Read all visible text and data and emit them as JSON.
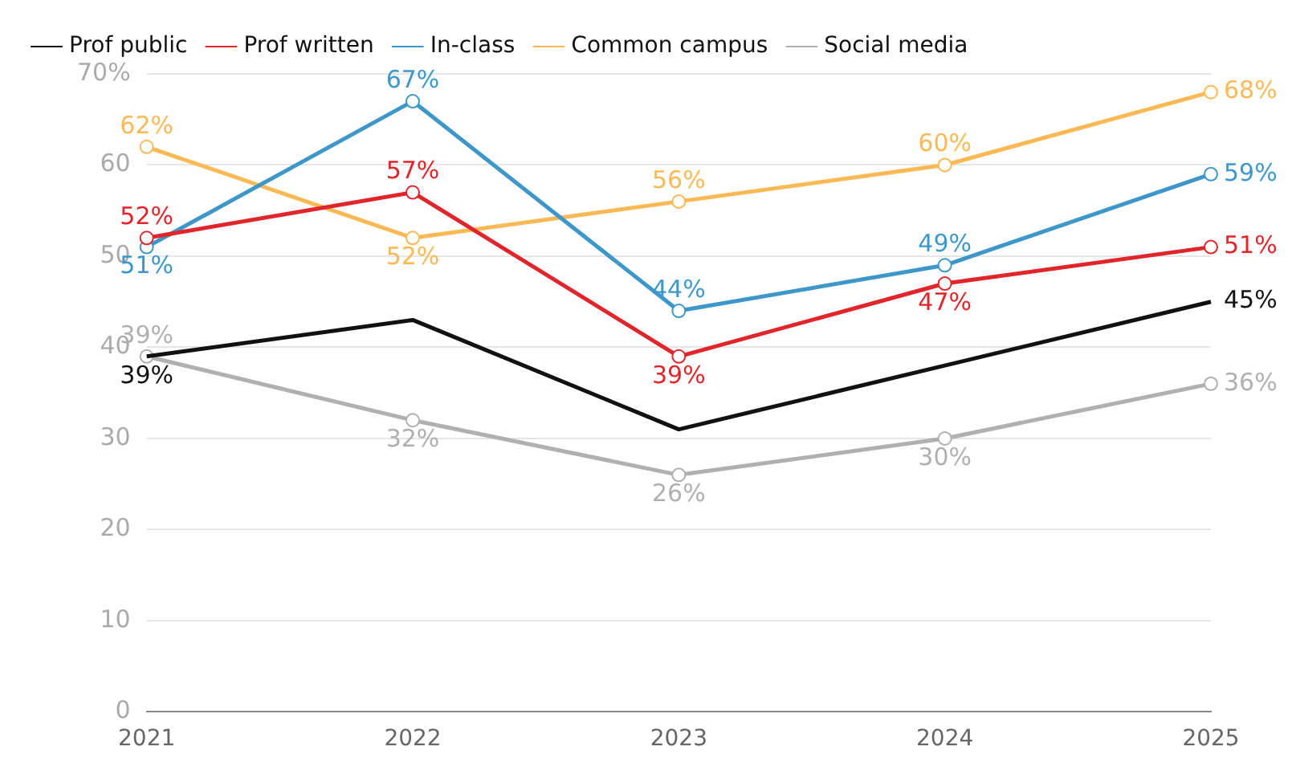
{
  "chart_data": {
    "type": "line",
    "categories": [
      "2021",
      "2022",
      "2023",
      "2024",
      "2025"
    ],
    "series": [
      {
        "name": "Prof public",
        "color": "#111111",
        "marker": "none",
        "values": [
          39,
          43,
          31,
          38,
          45
        ],
        "value_labels": [
          "39%",
          null,
          null,
          null,
          "45%"
        ]
      },
      {
        "name": "Prof written",
        "color": "#e0252b",
        "marker": "circle",
        "values": [
          52,
          57,
          39,
          47,
          51
        ],
        "value_labels": [
          "52%",
          "57%",
          "39%",
          "47%",
          "51%"
        ]
      },
      {
        "name": "In-class",
        "color": "#3d97c9",
        "marker": "circle",
        "values": [
          51,
          67,
          44,
          49,
          59
        ],
        "value_labels": [
          "51%",
          "67%",
          "44%",
          "49%",
          "59%"
        ]
      },
      {
        "name": "Common campus",
        "color": "#f9b955",
        "marker": "circle",
        "values": [
          62,
          52,
          56,
          60,
          68
        ],
        "value_labels": [
          "62%",
          "52%",
          "56%",
          "60%",
          "68%"
        ]
      },
      {
        "name": "Social media",
        "color": "#b0b0b0",
        "marker": "circle",
        "values": [
          39,
          32,
          26,
          30,
          36
        ],
        "value_labels": [
          "39%",
          "32%",
          "26%",
          "30%",
          "36%"
        ]
      }
    ],
    "ylim": [
      0,
      70
    ],
    "yticks": [
      0,
      10,
      20,
      30,
      40,
      50,
      60,
      {
        "value": 70,
        "label": "70%"
      }
    ],
    "grid": "y",
    "legend": "top left",
    "line_style": "solid"
  }
}
